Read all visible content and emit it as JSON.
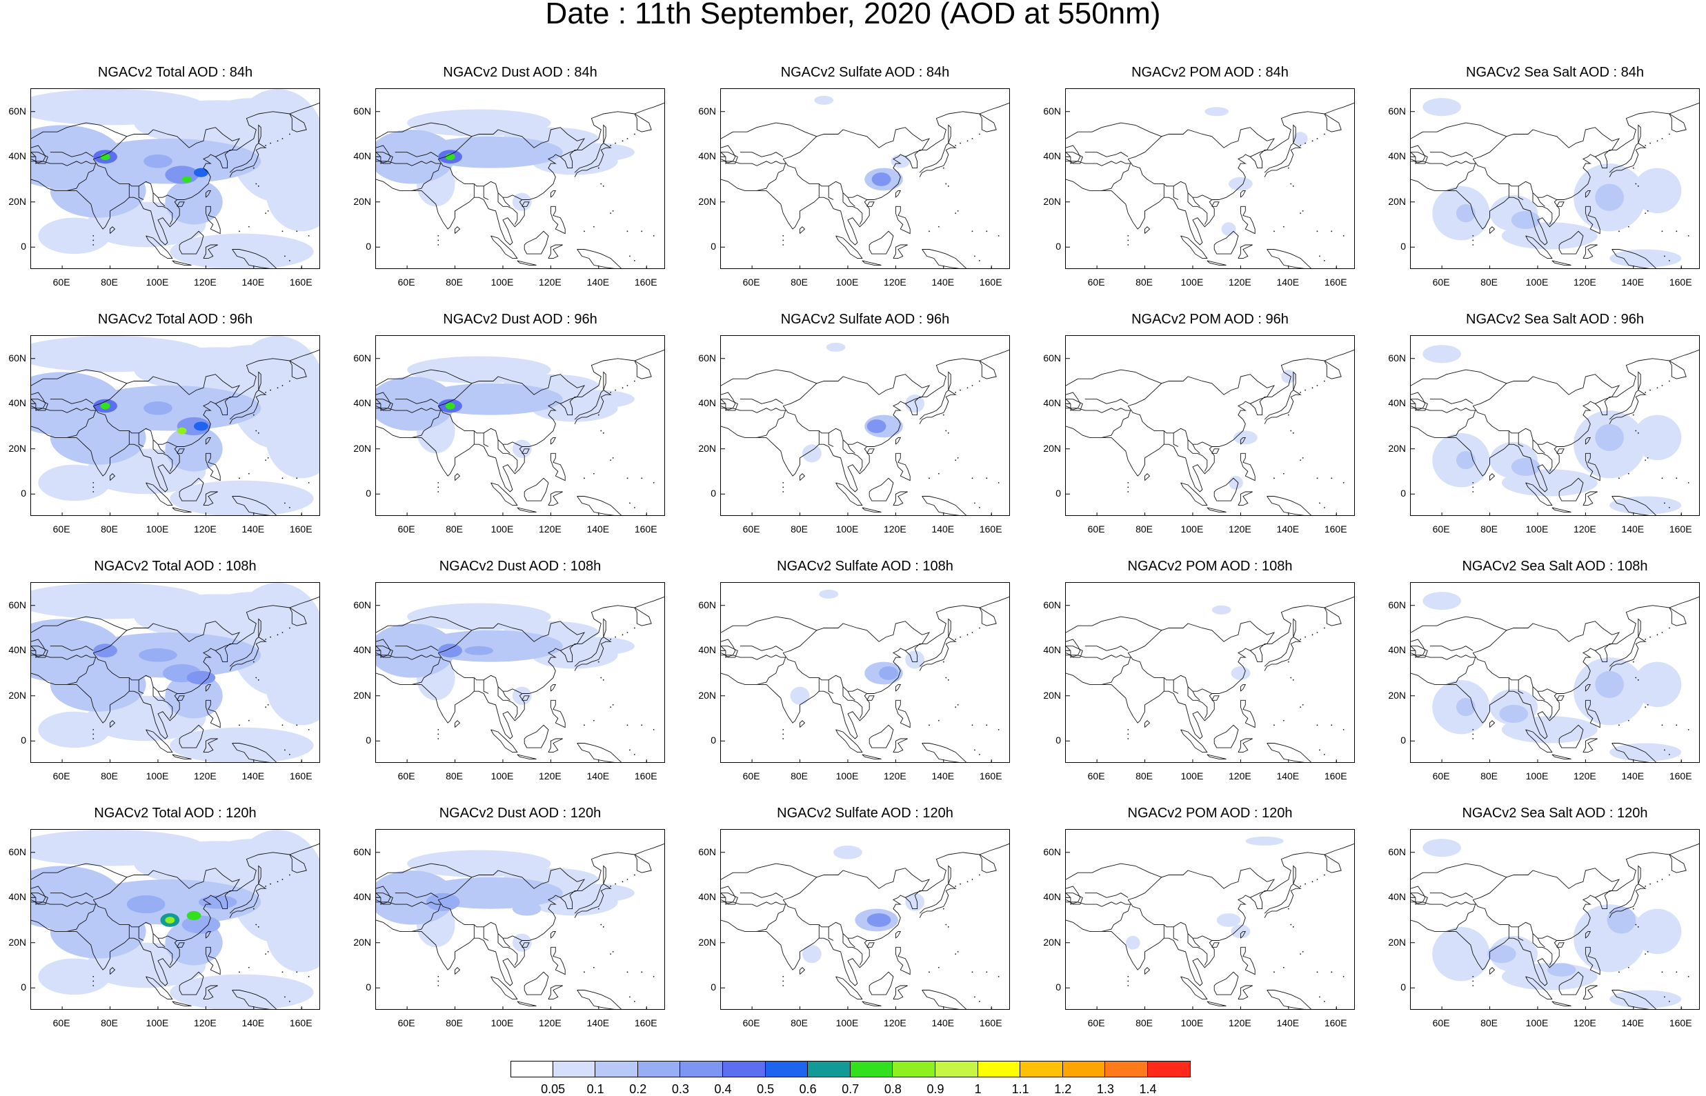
{
  "title": "Date : 11th September, 2020 (AOD at 550nm)",
  "lat_labels": [
    "60N",
    "40N",
    "20N",
    "0"
  ],
  "lon_labels": [
    "60E",
    "80E",
    "100E",
    "120E",
    "140E",
    "160E"
  ],
  "panels": [
    [
      {
        "title": "NGACv2 Total AOD : 84h",
        "species": "total",
        "hour": 84
      },
      {
        "title": "NGACv2 Dust AOD : 84h",
        "species": "dust",
        "hour": 84
      },
      {
        "title": "NGACv2 Sulfate AOD : 84h",
        "species": "sulfate",
        "hour": 84
      },
      {
        "title": "NGACv2 POM AOD : 84h",
        "species": "pom",
        "hour": 84
      },
      {
        "title": "NGACv2 Sea Salt AOD : 84h",
        "species": "seasalt",
        "hour": 84
      }
    ],
    [
      {
        "title": "NGACv2 Total AOD : 96h",
        "species": "total",
        "hour": 96
      },
      {
        "title": "NGACv2 Dust AOD : 96h",
        "species": "dust",
        "hour": 96
      },
      {
        "title": "NGACv2 Sulfate AOD : 96h",
        "species": "sulfate",
        "hour": 96
      },
      {
        "title": "NGACv2 POM AOD : 96h",
        "species": "pom",
        "hour": 96
      },
      {
        "title": "NGACv2 Sea Salt AOD : 96h",
        "species": "seasalt",
        "hour": 96
      }
    ],
    [
      {
        "title": "NGACv2 Total AOD : 108h",
        "species": "total",
        "hour": 108
      },
      {
        "title": "NGACv2 Dust AOD : 108h",
        "species": "dust",
        "hour": 108
      },
      {
        "title": "NGACv2 Sulfate AOD : 108h",
        "species": "sulfate",
        "hour": 108
      },
      {
        "title": "NGACv2 POM AOD : 108h",
        "species": "pom",
        "hour": 108
      },
      {
        "title": "NGACv2 Sea Salt AOD : 108h",
        "species": "seasalt",
        "hour": 108
      }
    ],
    [
      {
        "title": "NGACv2 Total AOD : 120h",
        "species": "total",
        "hour": 120
      },
      {
        "title": "NGACv2 Dust AOD : 120h",
        "species": "dust",
        "hour": 120
      },
      {
        "title": "NGACv2 Sulfate AOD : 120h",
        "species": "sulfate",
        "hour": 120
      },
      {
        "title": "NGACv2 POM AOD : 120h",
        "species": "pom",
        "hour": 120
      },
      {
        "title": "NGACv2 Sea Salt  AOD : 120h",
        "species": "seasalt",
        "hour": 120
      }
    ]
  ],
  "colorbar": {
    "colors": [
      "#ffffff",
      "#d6e0fb",
      "#b8c8f7",
      "#97aef4",
      "#7f95f2",
      "#5c6ff0",
      "#1e64f0",
      "#129a96",
      "#33e01e",
      "#8ef01e",
      "#c7f545",
      "#ffff00",
      "#ffc107",
      "#ffa500",
      "#ff7a1a",
      "#ff2a1a"
    ],
    "labels": [
      "0.05",
      "0.1",
      "0.2",
      "0.3",
      "0.4",
      "0.5",
      "0.6",
      "0.7",
      "0.8",
      "0.9",
      "1",
      "1.1",
      "1.2",
      "1.3",
      "1.4"
    ]
  }
}
